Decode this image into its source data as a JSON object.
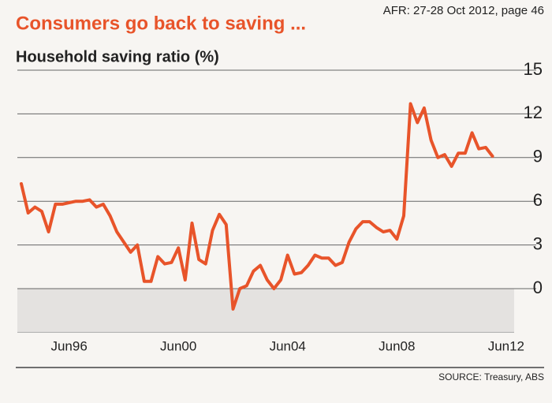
{
  "chart_data": {
    "type": "line",
    "title": "Consumers go back to saving ...",
    "subtitle": "Household saving ratio (%)",
    "annotation": "AFR: 27-28 Oct 2012, page 46",
    "source": "SOURCE: Treasury, ABS",
    "categories": [
      null,
      null,
      null,
      null,
      null,
      null,
      null,
      "Jun96",
      null,
      null,
      null,
      null,
      null,
      null,
      null,
      null,
      null,
      null,
      null,
      null,
      null,
      null,
      null,
      "Jun00",
      null,
      null,
      null,
      null,
      null,
      null,
      null,
      null,
      null,
      null,
      null,
      null,
      null,
      null,
      null,
      "Jun04",
      null,
      null,
      null,
      null,
      null,
      null,
      null,
      null,
      null,
      null,
      null,
      null,
      null,
      null,
      null,
      "Jun08",
      null,
      null,
      null,
      null,
      null,
      null,
      null,
      null,
      null,
      null,
      null,
      null,
      null,
      null,
      null,
      "Jun12"
    ],
    "values": [
      7.2,
      5.2,
      5.6,
      5.3,
      3.9,
      5.8,
      5.8,
      5.9,
      6.0,
      6.0,
      6.1,
      5.6,
      5.8,
      5.0,
      3.9,
      3.2,
      2.5,
      3.0,
      0.5,
      0.5,
      2.2,
      1.7,
      1.8,
      2.8,
      0.6,
      4.5,
      2.0,
      1.7,
      4.0,
      5.1,
      4.4,
      -1.4,
      0.0,
      0.2,
      1.2,
      1.6,
      0.6,
      0.0,
      0.6,
      2.3,
      1.0,
      1.1,
      1.6,
      2.3,
      2.1,
      2.1,
      1.6,
      1.8,
      3.2,
      4.1,
      4.6,
      4.6,
      4.2,
      3.9,
      4.0,
      3.4,
      5.0,
      12.7,
      11.4,
      12.4,
      10.2,
      9.0,
      9.2,
      8.4,
      9.3,
      9.3,
      10.7,
      9.6,
      9.7,
      9.1,
      null,
      null
    ],
    "color": "#e8542a",
    "ylim": [
      -3,
      15
    ],
    "yticks": [
      0,
      3,
      6,
      9,
      12,
      15
    ],
    "grid": true
  }
}
